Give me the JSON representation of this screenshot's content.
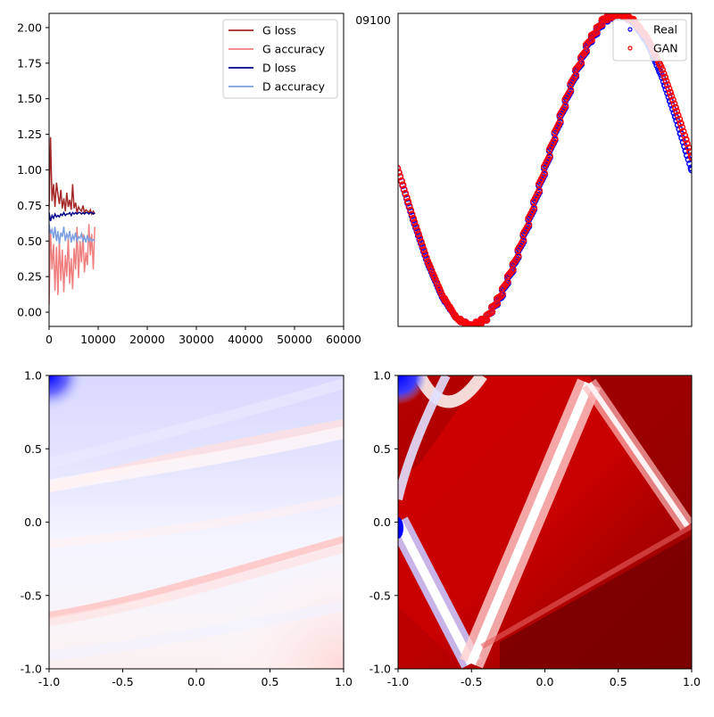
{
  "chart_data": [
    {
      "type": "line",
      "panel": "training-curves",
      "xlim": [
        0,
        60000
      ],
      "ylim": [
        -0.1,
        2.1
      ],
      "x_ticks": [
        0,
        10000,
        20000,
        30000,
        40000,
        50000,
        60000
      ],
      "x_tick_labels": [
        "0",
        "10000",
        "20000",
        "30000",
        "40000",
        "50000",
        "60000"
      ],
      "y_ticks": [
        0.0,
        0.25,
        0.5,
        0.75,
        1.0,
        1.25,
        1.5,
        1.75,
        2.0
      ],
      "y_tick_labels": [
        "0.00",
        "0.25",
        "0.50",
        "0.75",
        "1.00",
        "1.25",
        "1.50",
        "1.75",
        "2.00"
      ],
      "legend_position": "top-right",
      "series": [
        {
          "name": "G loss",
          "color": "#a52a2a",
          "x": [
            0,
            300,
            600,
            900,
            1200,
            1500,
            1800,
            2100,
            2400,
            2700,
            3000,
            3300,
            3600,
            3900,
            4200,
            4500,
            4800,
            5100,
            5400,
            5700,
            6000,
            6300,
            6600,
            6900,
            7200,
            7500,
            7800,
            8100,
            8400,
            8700,
            9000,
            9300
          ],
          "y": [
            0.72,
            1.23,
            0.78,
            0.9,
            0.74,
            0.91,
            0.83,
            0.76,
            0.86,
            0.73,
            0.8,
            0.71,
            0.84,
            0.74,
            0.79,
            0.72,
            0.9,
            0.73,
            0.77,
            0.7,
            0.74,
            0.72,
            0.71,
            0.75,
            0.7,
            0.72,
            0.71,
            0.7,
            0.72,
            0.69,
            0.71,
            0.69
          ]
        },
        {
          "name": "G accuracy",
          "color": "#f08080",
          "x": [
            0,
            300,
            600,
            900,
            1200,
            1500,
            1800,
            2100,
            2400,
            2700,
            3000,
            3300,
            3600,
            3900,
            4200,
            4500,
            4800,
            5100,
            5400,
            5700,
            6000,
            6300,
            6600,
            6900,
            7200,
            7500,
            7800,
            8100,
            8400,
            8700,
            9000,
            9300
          ],
          "y": [
            0.05,
            0.58,
            0.3,
            0.48,
            0.15,
            0.46,
            0.12,
            0.5,
            0.22,
            0.44,
            0.14,
            0.4,
            0.25,
            0.53,
            0.2,
            0.38,
            0.16,
            0.45,
            0.3,
            0.6,
            0.24,
            0.5,
            0.35,
            0.55,
            0.28,
            0.42,
            0.33,
            0.62,
            0.4,
            0.55,
            0.3,
            0.6
          ]
        },
        {
          "name": "D loss",
          "color": "#00008b",
          "x": [
            0,
            300,
            600,
            900,
            1200,
            1500,
            1800,
            2100,
            2400,
            2700,
            3000,
            3300,
            3600,
            3900,
            4200,
            4500,
            4800,
            5100,
            5400,
            5700,
            6000,
            6300,
            6600,
            6900,
            7200,
            7500,
            7800,
            8100,
            8400,
            8700,
            9000,
            9300
          ],
          "y": [
            0.7,
            0.64,
            0.68,
            0.66,
            0.69,
            0.67,
            0.68,
            0.67,
            0.69,
            0.68,
            0.7,
            0.68,
            0.69,
            0.69,
            0.7,
            0.68,
            0.7,
            0.69,
            0.7,
            0.69,
            0.7,
            0.7,
            0.69,
            0.7,
            0.69,
            0.7,
            0.7,
            0.69,
            0.7,
            0.7,
            0.69,
            0.7
          ]
        },
        {
          "name": "D accuracy",
          "color": "#7b9ee0",
          "x": [
            0,
            300,
            600,
            900,
            1200,
            1500,
            1800,
            2100,
            2400,
            2700,
            3000,
            3300,
            3600,
            3900,
            4200,
            4500,
            4800,
            5100,
            5400,
            5700,
            6000,
            6300,
            6600,
            6900,
            7200,
            7500,
            7800,
            8100,
            8400,
            8700,
            9000,
            9300
          ],
          "y": [
            0.62,
            0.55,
            0.58,
            0.52,
            0.6,
            0.5,
            0.57,
            0.48,
            0.56,
            0.53,
            0.6,
            0.5,
            0.55,
            0.52,
            0.57,
            0.49,
            0.54,
            0.51,
            0.56,
            0.5,
            0.53,
            0.52,
            0.55,
            0.5,
            0.53,
            0.49,
            0.54,
            0.5,
            0.52,
            0.5,
            0.51,
            0.5
          ]
        }
      ]
    },
    {
      "type": "scatter",
      "panel": "samples",
      "xlim": [
        -1,
        1
      ],
      "ylim": [
        -1,
        1
      ],
      "y_tick_labels": [
        "09100"
      ],
      "legend_position": "top-right",
      "series": [
        {
          "name": "Real",
          "color": "#0000ff",
          "x": [
            -1.0,
            -0.9,
            -0.8,
            -0.7,
            -0.6,
            -0.5,
            -0.4,
            -0.3,
            -0.2,
            -0.1,
            0.0,
            0.1,
            0.2,
            0.3,
            0.4,
            0.5,
            0.6,
            0.7,
            0.8,
            0.9,
            1.0
          ],
          "y": [
            0.0,
            -0.31,
            -0.59,
            -0.81,
            -0.95,
            -1.0,
            -0.95,
            -0.81,
            -0.59,
            -0.31,
            0.0,
            0.31,
            0.59,
            0.81,
            0.95,
            1.0,
            0.95,
            0.81,
            0.59,
            0.31,
            0.0
          ]
        },
        {
          "name": "GAN",
          "color": "#ff0000",
          "x": [
            -1.0,
            -0.9,
            -0.8,
            -0.7,
            -0.6,
            -0.5,
            -0.4,
            -0.3,
            -0.2,
            -0.1,
            0.0,
            0.1,
            0.2,
            0.3,
            0.4,
            0.5,
            0.6,
            0.7,
            0.8,
            0.9,
            1.0
          ],
          "y": [
            0.0,
            -0.3,
            -0.58,
            -0.8,
            -0.95,
            -1.0,
            -0.95,
            -0.8,
            -0.58,
            -0.3,
            0.01,
            0.32,
            0.6,
            0.82,
            0.96,
            1.0,
            0.96,
            0.84,
            0.64,
            0.37,
            0.08
          ]
        }
      ]
    },
    {
      "type": "heatmap",
      "panel": "discriminator-field-low",
      "xlim": [
        -1,
        1
      ],
      "ylim": [
        -1,
        1
      ],
      "x_tick_labels": [
        "-1.0",
        "-0.5",
        "0.0",
        "0.5",
        "1.0"
      ],
      "y_tick_labels": [
        "-1.0",
        "-0.5",
        "0.0",
        "0.5",
        "1.0"
      ],
      "colormap": "bwr",
      "low_color": "#0000ff",
      "high_color": "#ff0000"
    },
    {
      "type": "heatmap",
      "panel": "discriminator-field-high",
      "xlim": [
        -1,
        1
      ],
      "ylim": [
        -1,
        1
      ],
      "x_tick_labels": [
        "-1.0",
        "-0.5",
        "0.0",
        "0.5",
        "1.0"
      ],
      "y_tick_labels": [
        "-1.0",
        "-0.5",
        "0.0",
        "0.5",
        "1.0"
      ],
      "colormap": "seismic",
      "low_color": "#0000ff",
      "high_color": "#8b0000"
    }
  ]
}
